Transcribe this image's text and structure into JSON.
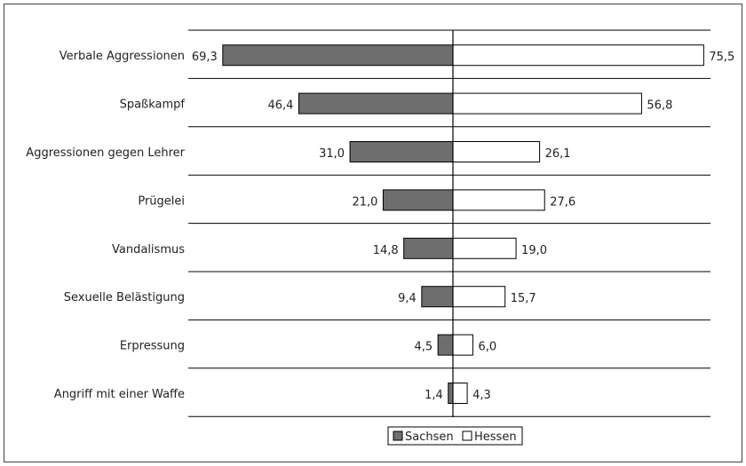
{
  "chart_data": {
    "type": "bar",
    "orientation": "horizontal-diverging",
    "categories": [
      "Verbale Aggressionen",
      "Spaßkampf",
      "Aggressionen gegen Lehrer",
      "Prügelei",
      "Vandalismus",
      "Sexuelle Belästigung",
      "Erpressung",
      "Angriff mit einer Waffe"
    ],
    "series": [
      {
        "name": "Sachsen",
        "values": [
          69.3,
          46.4,
          31.0,
          21.0,
          14.8,
          9.4,
          4.5,
          1.4
        ],
        "labels": [
          "69,3",
          "46,4",
          "31,0",
          "21,0",
          "14,8",
          "9,4",
          "4,5",
          "1,4"
        ],
        "color": "#6e6e6e",
        "direction": "left"
      },
      {
        "name": "Hessen",
        "values": [
          75.5,
          56.8,
          26.1,
          27.6,
          19.0,
          15.7,
          6.0,
          4.3
        ],
        "labels": [
          "75,5",
          "56,8",
          "26,1",
          "27,6",
          "19,0",
          "15,7",
          "6,0",
          "4,3"
        ],
        "color": "#ffffff",
        "direction": "right"
      }
    ],
    "legend": {
      "position": "bottom-center"
    },
    "grid": "horizontal",
    "title": "",
    "xlabel": "",
    "ylabel": ""
  }
}
